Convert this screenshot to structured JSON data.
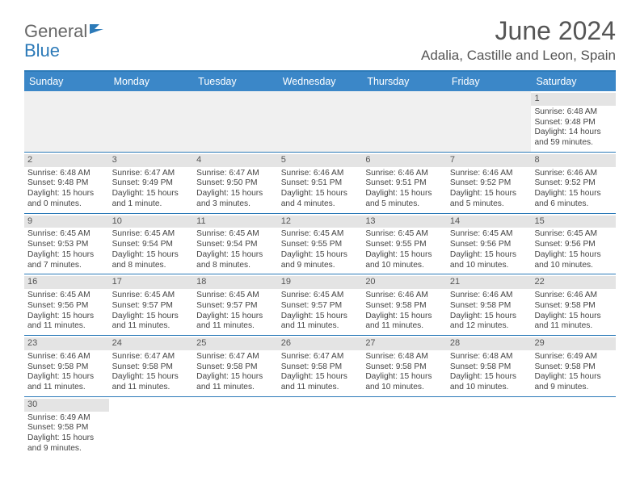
{
  "logo": {
    "general": "General",
    "blue": "Blue"
  },
  "title": "June 2024",
  "location": "Adalia, Castille and Leon, Spain",
  "day_headers": [
    "Sunday",
    "Monday",
    "Tuesday",
    "Wednesday",
    "Thursday",
    "Friday",
    "Saturday"
  ],
  "colors": {
    "header_bg": "#3b87c8",
    "border": "#2c7ab8",
    "daynum_bg": "#e4e4e4",
    "blank_bg": "#f0f0f0"
  },
  "weeks": [
    [
      {
        "blank": true
      },
      {
        "blank": true
      },
      {
        "blank": true
      },
      {
        "blank": true
      },
      {
        "blank": true
      },
      {
        "blank": true
      },
      {
        "num": "1",
        "sunrise": "Sunrise: 6:48 AM",
        "sunset": "Sunset: 9:48 PM",
        "daylight": "Daylight: 14 hours and 59 minutes."
      }
    ],
    [
      {
        "num": "2",
        "sunrise": "Sunrise: 6:48 AM",
        "sunset": "Sunset: 9:48 PM",
        "daylight": "Daylight: 15 hours and 0 minutes."
      },
      {
        "num": "3",
        "sunrise": "Sunrise: 6:47 AM",
        "sunset": "Sunset: 9:49 PM",
        "daylight": "Daylight: 15 hours and 1 minute."
      },
      {
        "num": "4",
        "sunrise": "Sunrise: 6:47 AM",
        "sunset": "Sunset: 9:50 PM",
        "daylight": "Daylight: 15 hours and 3 minutes."
      },
      {
        "num": "5",
        "sunrise": "Sunrise: 6:46 AM",
        "sunset": "Sunset: 9:51 PM",
        "daylight": "Daylight: 15 hours and 4 minutes."
      },
      {
        "num": "6",
        "sunrise": "Sunrise: 6:46 AM",
        "sunset": "Sunset: 9:51 PM",
        "daylight": "Daylight: 15 hours and 5 minutes."
      },
      {
        "num": "7",
        "sunrise": "Sunrise: 6:46 AM",
        "sunset": "Sunset: 9:52 PM",
        "daylight": "Daylight: 15 hours and 5 minutes."
      },
      {
        "num": "8",
        "sunrise": "Sunrise: 6:46 AM",
        "sunset": "Sunset: 9:52 PM",
        "daylight": "Daylight: 15 hours and 6 minutes."
      }
    ],
    [
      {
        "num": "9",
        "sunrise": "Sunrise: 6:45 AM",
        "sunset": "Sunset: 9:53 PM",
        "daylight": "Daylight: 15 hours and 7 minutes."
      },
      {
        "num": "10",
        "sunrise": "Sunrise: 6:45 AM",
        "sunset": "Sunset: 9:54 PM",
        "daylight": "Daylight: 15 hours and 8 minutes."
      },
      {
        "num": "11",
        "sunrise": "Sunrise: 6:45 AM",
        "sunset": "Sunset: 9:54 PM",
        "daylight": "Daylight: 15 hours and 8 minutes."
      },
      {
        "num": "12",
        "sunrise": "Sunrise: 6:45 AM",
        "sunset": "Sunset: 9:55 PM",
        "daylight": "Daylight: 15 hours and 9 minutes."
      },
      {
        "num": "13",
        "sunrise": "Sunrise: 6:45 AM",
        "sunset": "Sunset: 9:55 PM",
        "daylight": "Daylight: 15 hours and 10 minutes."
      },
      {
        "num": "14",
        "sunrise": "Sunrise: 6:45 AM",
        "sunset": "Sunset: 9:56 PM",
        "daylight": "Daylight: 15 hours and 10 minutes."
      },
      {
        "num": "15",
        "sunrise": "Sunrise: 6:45 AM",
        "sunset": "Sunset: 9:56 PM",
        "daylight": "Daylight: 15 hours and 10 minutes."
      }
    ],
    [
      {
        "num": "16",
        "sunrise": "Sunrise: 6:45 AM",
        "sunset": "Sunset: 9:56 PM",
        "daylight": "Daylight: 15 hours and 11 minutes."
      },
      {
        "num": "17",
        "sunrise": "Sunrise: 6:45 AM",
        "sunset": "Sunset: 9:57 PM",
        "daylight": "Daylight: 15 hours and 11 minutes."
      },
      {
        "num": "18",
        "sunrise": "Sunrise: 6:45 AM",
        "sunset": "Sunset: 9:57 PM",
        "daylight": "Daylight: 15 hours and 11 minutes."
      },
      {
        "num": "19",
        "sunrise": "Sunrise: 6:45 AM",
        "sunset": "Sunset: 9:57 PM",
        "daylight": "Daylight: 15 hours and 11 minutes."
      },
      {
        "num": "20",
        "sunrise": "Sunrise: 6:46 AM",
        "sunset": "Sunset: 9:58 PM",
        "daylight": "Daylight: 15 hours and 11 minutes."
      },
      {
        "num": "21",
        "sunrise": "Sunrise: 6:46 AM",
        "sunset": "Sunset: 9:58 PM",
        "daylight": "Daylight: 15 hours and 12 minutes."
      },
      {
        "num": "22",
        "sunrise": "Sunrise: 6:46 AM",
        "sunset": "Sunset: 9:58 PM",
        "daylight": "Daylight: 15 hours and 11 minutes."
      }
    ],
    [
      {
        "num": "23",
        "sunrise": "Sunrise: 6:46 AM",
        "sunset": "Sunset: 9:58 PM",
        "daylight": "Daylight: 15 hours and 11 minutes."
      },
      {
        "num": "24",
        "sunrise": "Sunrise: 6:47 AM",
        "sunset": "Sunset: 9:58 PM",
        "daylight": "Daylight: 15 hours and 11 minutes."
      },
      {
        "num": "25",
        "sunrise": "Sunrise: 6:47 AM",
        "sunset": "Sunset: 9:58 PM",
        "daylight": "Daylight: 15 hours and 11 minutes."
      },
      {
        "num": "26",
        "sunrise": "Sunrise: 6:47 AM",
        "sunset": "Sunset: 9:58 PM",
        "daylight": "Daylight: 15 hours and 11 minutes."
      },
      {
        "num": "27",
        "sunrise": "Sunrise: 6:48 AM",
        "sunset": "Sunset: 9:58 PM",
        "daylight": "Daylight: 15 hours and 10 minutes."
      },
      {
        "num": "28",
        "sunrise": "Sunrise: 6:48 AM",
        "sunset": "Sunset: 9:58 PM",
        "daylight": "Daylight: 15 hours and 10 minutes."
      },
      {
        "num": "29",
        "sunrise": "Sunrise: 6:49 AM",
        "sunset": "Sunset: 9:58 PM",
        "daylight": "Daylight: 15 hours and 9 minutes."
      }
    ],
    [
      {
        "num": "30",
        "sunrise": "Sunrise: 6:49 AM",
        "sunset": "Sunset: 9:58 PM",
        "daylight": "Daylight: 15 hours and 9 minutes."
      },
      {
        "blank": true
      },
      {
        "blank": true
      },
      {
        "blank": true
      },
      {
        "blank": true
      },
      {
        "blank": true
      },
      {
        "blank": true
      }
    ]
  ]
}
